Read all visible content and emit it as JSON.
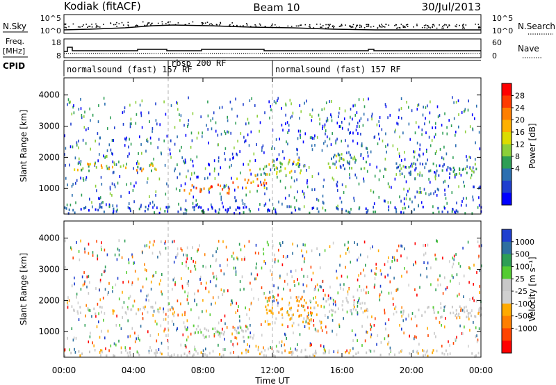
{
  "header": {
    "station": "Kodiak (fitACF)",
    "beam": "Beam 10",
    "date": "30/Jul/2013"
  },
  "top_panels": {
    "sky_label": "N.Sky",
    "search_label": "N.Search",
    "sky_ticks_left": [
      "10^5",
      "10^0"
    ],
    "sky_ticks_right": [
      "10^5",
      "10^0"
    ],
    "freq_label_1": "Freq.",
    "freq_label_2": "[MHz]",
    "freq_ticks": [
      "8",
      "18"
    ],
    "nave_label": "Nave",
    "nave_ticks": [
      "60",
      "0"
    ],
    "cpid_label": "CPID",
    "cpid_segments": [
      {
        "label": "normalsound (fast) 157 RF",
        "start_hour": 0,
        "end_hour": 6
      },
      {
        "label": "rbsp 200 RF",
        "start_hour": 6,
        "end_hour": 12
      },
      {
        "label": "normalsound (fast) 157 RF",
        "start_hour": 12,
        "end_hour": 24
      }
    ]
  },
  "axes": {
    "y_label": "Slant Range [km]",
    "y_ticks": [
      1000,
      2000,
      3000,
      4000
    ],
    "y_range": [
      180,
      4550
    ],
    "x_label": "Time UT",
    "x_ticks": [
      "00:00",
      "04:00",
      "08:00",
      "12:00",
      "16:00",
      "20:00",
      "00:00"
    ],
    "x_tick_hours": [
      0,
      4,
      8,
      12,
      16,
      20,
      24
    ],
    "x_range_hours": [
      0,
      24
    ]
  },
  "power_scale": {
    "label": "Power [dB]",
    "ticks": [
      "28",
      "24",
      "20",
      "16",
      "12",
      "8",
      "4"
    ],
    "colors": [
      "#ff0000",
      "#ff3a00",
      "#ff7f00",
      "#ffb000",
      "#dcdc00",
      "#8ccf3a",
      "#2e9e55",
      "#2c6fb0",
      "#1f3fcf",
      "#0000ff"
    ]
  },
  "velocity_scale": {
    "label": "Velocity [m s⁻¹]",
    "ticks": [
      "1000",
      "500",
      "100",
      "25",
      "-25",
      "-100",
      "-500",
      "-1000"
    ],
    "colors": [
      "#1f3fcf",
      "#2e6fa0",
      "#2e9e55",
      "#55cc33",
      "#c8c8c8",
      "#d0d0d0",
      "#ffaa00",
      "#ff7f00",
      "#ff4400",
      "#ff0000"
    ]
  },
  "chart_data": [
    {
      "type": "heatmap",
      "title": "Power",
      "xlabel": "Time UT",
      "ylabel": "Slant Range [km]",
      "zlabel": "Power [dB]",
      "xlim_hours": [
        0,
        24
      ],
      "ylim_km": [
        180,
        4550
      ],
      "zlim": [
        0,
        30
      ],
      "features": [
        {
          "hours": [
            0.4,
            5.6
          ],
          "range_km": [
            1550,
            1800
          ],
          "value_db": 16
        },
        {
          "hours": [
            6.8,
            9.5
          ],
          "range_km": [
            800,
            1100
          ],
          "value_db": 24
        },
        {
          "hours": [
            9.5,
            11.8
          ],
          "range_km": [
            1000,
            1300
          ],
          "value_db": 22
        },
        {
          "hours": [
            10.5,
            13.8
          ],
          "range_km": [
            1400,
            1900
          ],
          "value_db": 14
        },
        {
          "hours": [
            15.0,
            17.5
          ],
          "range_km": [
            1600,
            2100
          ],
          "value_db": 10
        },
        {
          "hours": [
            19.0,
            24.0
          ],
          "range_km": [
            1400,
            1800
          ],
          "value_db": 8
        },
        {
          "hours": [
            0.0,
            24.0
          ],
          "range_km": [
            180,
            400
          ],
          "value_db": 6
        }
      ]
    },
    {
      "type": "heatmap",
      "title": "Velocity",
      "xlabel": "Time UT",
      "ylabel": "Slant Range [km]",
      "zlabel": "Velocity [m s⁻¹]",
      "xlim_hours": [
        0,
        24
      ],
      "ylim_km": [
        180,
        4550
      ],
      "zlim": [
        -1000,
        1000
      ],
      "features": [
        {
          "hours": [
            0.4,
            5.6
          ],
          "range_km": [
            1550,
            1800
          ],
          "value_ms": 0
        },
        {
          "hours": [
            6.8,
            11.0
          ],
          "range_km": [
            800,
            1200
          ],
          "value_ms": 150
        },
        {
          "hours": [
            11.5,
            14.8
          ],
          "range_km": [
            1200,
            2100
          ],
          "value_ms": -300
        },
        {
          "hours": [
            15.0,
            17.5
          ],
          "range_km": [
            1600,
            2100
          ],
          "value_ms": 0
        },
        {
          "hours": [
            19.0,
            24.0
          ],
          "range_km": [
            1400,
            1800
          ],
          "value_ms": 0
        },
        {
          "hours": [
            0.0,
            24.0
          ],
          "range_km": [
            180,
            400
          ],
          "value_ms": -50
        }
      ]
    }
  ]
}
